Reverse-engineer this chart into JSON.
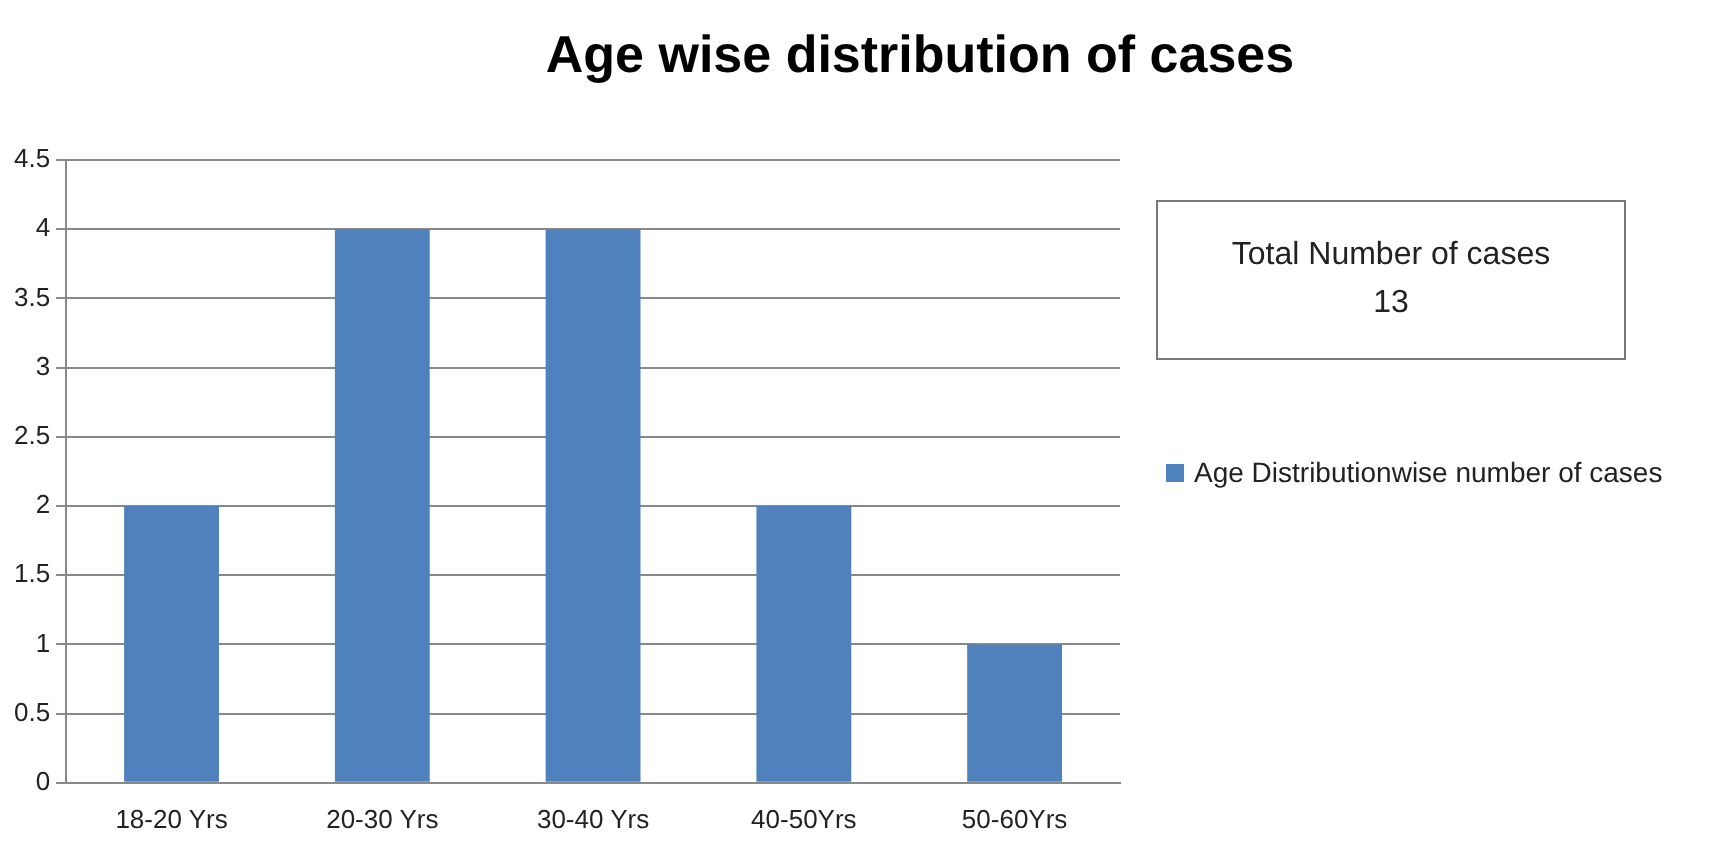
{
  "chart_data": {
    "type": "bar",
    "title": "Age wise distribution of cases",
    "categories": [
      "18-20 Yrs",
      "20-30 Yrs",
      "30-40 Yrs",
      "40-50Yrs",
      "50-60Yrs"
    ],
    "series": [
      {
        "name": "Age Distributionwise number of cases",
        "color": "#4f81bd",
        "values": [
          2,
          4,
          4,
          2,
          1
        ]
      }
    ],
    "ylim": [
      0,
      4.5
    ],
    "yticks": [
      0,
      0.5,
      1,
      1.5,
      2,
      2.5,
      3,
      3.5,
      4,
      4.5
    ],
    "grid": "y",
    "legend": "right",
    "annotations": [
      "Total Number of cases",
      "13"
    ]
  }
}
